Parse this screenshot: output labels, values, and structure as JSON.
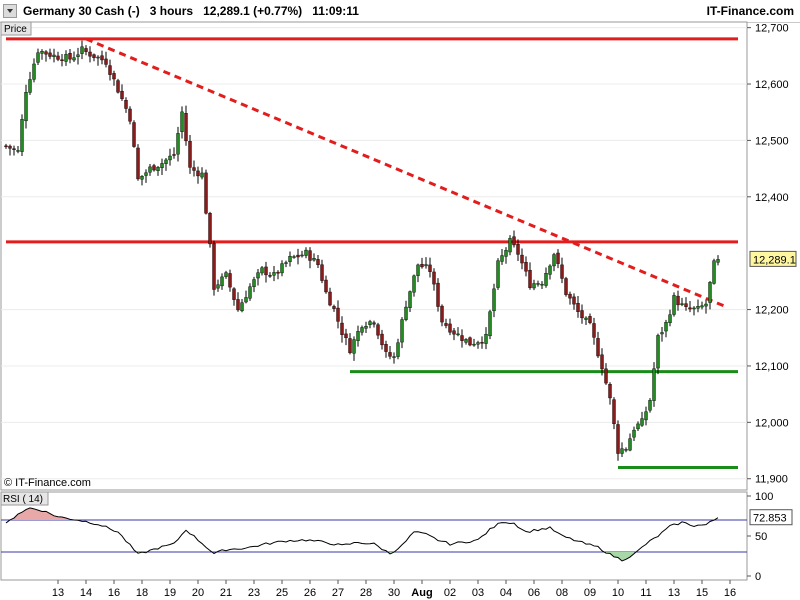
{
  "header": {
    "instrument": "Germany 30 Cash (-)",
    "timeframe": "3 hours",
    "last_value": "12,289.1",
    "change": "(+0.77%)",
    "time": "11:09:11",
    "brand": "IT-Finance.com"
  },
  "watermark": "© IT-Finance.com",
  "price_panel": {
    "label": "Price",
    "last_price_label": "12,289.1",
    "ylim": [
      11880,
      12710
    ],
    "ticks": [
      {
        "value": 12700,
        "label": "12,700"
      },
      {
        "value": 12600,
        "label": "12,600"
      },
      {
        "value": 12500,
        "label": "12,500"
      },
      {
        "value": 12400,
        "label": "12,400"
      },
      {
        "value": 12200,
        "label": "12,200"
      },
      {
        "value": 12100,
        "label": "12,100"
      },
      {
        "value": 12000,
        "label": "12,000"
      },
      {
        "value": 11900,
        "label": "11,900"
      }
    ],
    "colors": {
      "up": "#228b22",
      "down": "#8b1a1a",
      "wick": "#000000",
      "resistance": "#e31c1c",
      "support": "#1a8c1a"
    }
  },
  "rsi_panel": {
    "label": "RSI ( 14)",
    "current_label": "72.853",
    "ylim": [
      -5,
      105
    ],
    "ticks": [
      {
        "value": 100,
        "label": "100"
      },
      {
        "value": 50,
        "label": "50"
      },
      {
        "value": 0,
        "label": "0"
      }
    ],
    "upper_band": 70,
    "lower_band": 30
  },
  "x_axis": {
    "labels": [
      {
        "i": 6,
        "label": "13"
      },
      {
        "i": 13,
        "label": "14"
      },
      {
        "i": 20,
        "label": "16"
      },
      {
        "i": 27,
        "label": "18"
      },
      {
        "i": 34,
        "label": "19"
      },
      {
        "i": 41,
        "label": "20"
      },
      {
        "i": 48,
        "label": "21"
      },
      {
        "i": 55,
        "label": "23"
      },
      {
        "i": 62,
        "label": "25"
      },
      {
        "i": 69,
        "label": "26"
      },
      {
        "i": 76,
        "label": "27"
      },
      {
        "i": 83,
        "label": "28"
      },
      {
        "i": 90,
        "label": "30"
      },
      {
        "i": 97,
        "label": "Aug"
      },
      {
        "i": 104,
        "label": "02"
      },
      {
        "i": 111,
        "label": "03"
      },
      {
        "i": 118,
        "label": "04"
      },
      {
        "i": 125,
        "label": "06"
      },
      {
        "i": 132,
        "label": "08"
      },
      {
        "i": 139,
        "label": "09"
      },
      {
        "i": 146,
        "label": "10"
      },
      {
        "i": 153,
        "label": "11"
      },
      {
        "i": 160,
        "label": "13"
      },
      {
        "i": 167,
        "label": "15"
      },
      {
        "i": 174,
        "label": "16"
      }
    ]
  },
  "chart_data": {
    "type": "candlestick",
    "candle_count": 179,
    "anchors_close": [
      [
        0,
        12490
      ],
      [
        3,
        12480
      ],
      [
        5,
        12590
      ],
      [
        8,
        12660
      ],
      [
        12,
        12650
      ],
      [
        16,
        12645
      ],
      [
        19,
        12660
      ],
      [
        22,
        12650
      ],
      [
        25,
        12640
      ],
      [
        28,
        12590
      ],
      [
        31,
        12540
      ],
      [
        33,
        12430
      ],
      [
        36,
        12450
      ],
      [
        39,
        12460
      ],
      [
        42,
        12475
      ],
      [
        44,
        12550
      ],
      [
        46,
        12450
      ],
      [
        49,
        12440
      ],
      [
        51,
        12310
      ],
      [
        52,
        12240
      ],
      [
        55,
        12260
      ],
      [
        58,
        12200
      ],
      [
        61,
        12240
      ],
      [
        64,
        12270
      ],
      [
        67,
        12260
      ],
      [
        71,
        12290
      ],
      [
        75,
        12300
      ],
      [
        78,
        12280
      ],
      [
        80,
        12230
      ],
      [
        82,
        12200
      ],
      [
        84,
        12160
      ],
      [
        86,
        12130
      ],
      [
        89,
        12175
      ],
      [
        92,
        12180
      ],
      [
        95,
        12120
      ],
      [
        97,
        12115
      ],
      [
        100,
        12210
      ],
      [
        103,
        12280
      ],
      [
        106,
        12270
      ],
      [
        109,
        12180
      ],
      [
        112,
        12160
      ],
      [
        116,
        12140
      ],
      [
        120,
        12150
      ],
      [
        123,
        12280
      ],
      [
        126,
        12320
      ],
      [
        128,
        12300
      ],
      [
        131,
        12245
      ],
      [
        134,
        12250
      ],
      [
        137,
        12300
      ],
      [
        140,
        12230
      ],
      [
        143,
        12195
      ],
      [
        146,
        12170
      ],
      [
        149,
        12100
      ],
      [
        151,
        12040
      ],
      [
        153,
        11950
      ],
      [
        155,
        11955
      ],
      [
        157,
        11990
      ],
      [
        159,
        12000
      ],
      [
        161,
        12040
      ],
      [
        163,
        12150
      ],
      [
        165,
        12175
      ],
      [
        167,
        12220
      ],
      [
        170,
        12200
      ],
      [
        173,
        12200
      ],
      [
        175,
        12210
      ],
      [
        177,
        12280
      ],
      [
        178,
        12289
      ]
    ],
    "anchors_rsi": [
      [
        0,
        65
      ],
      [
        3,
        78
      ],
      [
        6,
        85
      ],
      [
        9,
        82
      ],
      [
        13,
        74
      ],
      [
        18,
        70
      ],
      [
        23,
        65
      ],
      [
        28,
        55
      ],
      [
        33,
        27
      ],
      [
        38,
        35
      ],
      [
        42,
        40
      ],
      [
        45,
        58
      ],
      [
        49,
        41
      ],
      [
        52,
        28
      ],
      [
        55,
        33
      ],
      [
        60,
        35
      ],
      [
        65,
        40
      ],
      [
        70,
        44
      ],
      [
        75,
        45
      ],
      [
        80,
        42
      ],
      [
        84,
        38
      ],
      [
        88,
        42
      ],
      [
        92,
        40
      ],
      [
        96,
        28
      ],
      [
        99,
        38
      ],
      [
        102,
        55
      ],
      [
        105,
        52
      ],
      [
        108,
        45
      ],
      [
        111,
        40
      ],
      [
        114,
        42
      ],
      [
        118,
        45
      ],
      [
        121,
        58
      ],
      [
        124,
        68
      ],
      [
        127,
        66
      ],
      [
        130,
        55
      ],
      [
        133,
        58
      ],
      [
        136,
        60
      ],
      [
        139,
        50
      ],
      [
        142,
        45
      ],
      [
        145,
        40
      ],
      [
        148,
        36
      ],
      [
        151,
        27
      ],
      [
        154,
        20
      ],
      [
        157,
        27
      ],
      [
        160,
        40
      ],
      [
        163,
        50
      ],
      [
        166,
        62
      ],
      [
        169,
        67
      ],
      [
        172,
        63
      ],
      [
        175,
        64
      ],
      [
        178,
        72.853
      ]
    ],
    "lines": [
      {
        "name": "resistance-upper",
        "type": "horizontal",
        "value": 12680,
        "from_i": 0,
        "to_i": 183,
        "color": "#e31c1c",
        "style": "solid"
      },
      {
        "name": "resistance-mid",
        "type": "horizontal",
        "value": 12320,
        "from_i": 0,
        "to_i": 183,
        "color": "#e31c1c",
        "style": "solid"
      },
      {
        "name": "support-upper",
        "type": "horizontal",
        "value": 12090,
        "from_i": 86,
        "to_i": 183,
        "color": "#1a8c1a",
        "style": "solid"
      },
      {
        "name": "support-lower",
        "type": "horizontal",
        "value": 11920,
        "from_i": 153,
        "to_i": 183,
        "color": "#1a8c1a",
        "style": "solid"
      },
      {
        "name": "downtrend-line",
        "type": "trend",
        "from": [
          20,
          12680
        ],
        "to": [
          180,
          12205
        ],
        "color": "#e31c1c",
        "style": "dashed"
      }
    ]
  }
}
